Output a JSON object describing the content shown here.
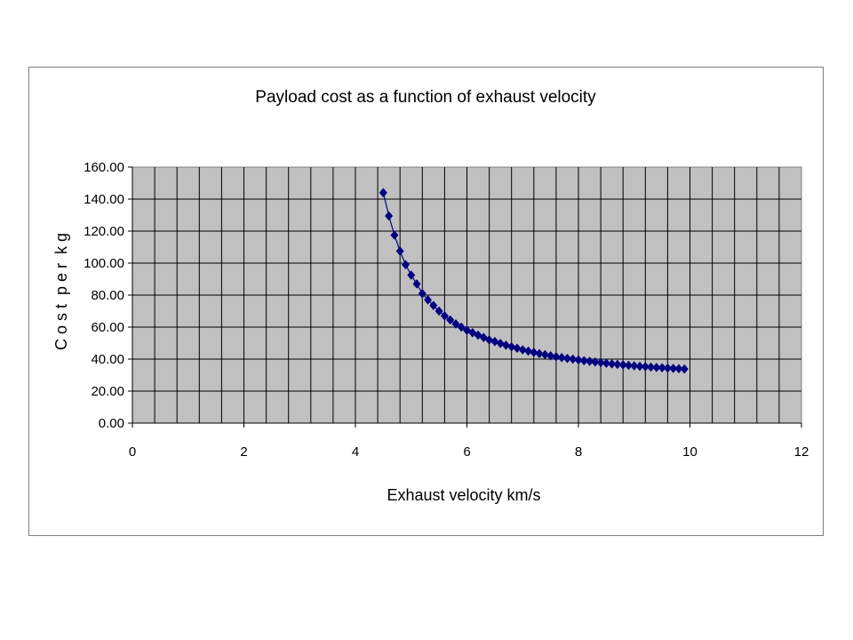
{
  "chart_data": {
    "type": "scatter",
    "title": "Payload cost as a function of exhaust velocity",
    "xlabel": "Exhaust velocity km/s",
    "ylabel": "C o s t  p e r  k g",
    "xlim": [
      0,
      12
    ],
    "ylim": [
      0,
      160
    ],
    "x_ticks": [
      "0",
      "2",
      "4",
      "6",
      "8",
      "10",
      "12"
    ],
    "y_ticks": [
      "0.00",
      "20.00",
      "40.00",
      "60.00",
      "80.00",
      "100.00",
      "120.00",
      "140.00",
      "160.00"
    ],
    "x_minor_step": 0.4,
    "y_step": 20,
    "grid": true,
    "plot_background": "#c0c0c0",
    "series": [
      {
        "color": "#000080",
        "marker": "diamond",
        "connected": true,
        "x": [
          4.5,
          4.6,
          4.7,
          4.8,
          4.9,
          5.0,
          5.1,
          5.2,
          5.3,
          5.4,
          5.5,
          5.6,
          5.7,
          5.8,
          5.9,
          6.0,
          6.1,
          6.2,
          6.3,
          6.4,
          6.5,
          6.6,
          6.7,
          6.8,
          6.9,
          7.0,
          7.1,
          7.2,
          7.3,
          7.4,
          7.5,
          7.6,
          7.7,
          7.8,
          7.9,
          8.0,
          8.1,
          8.2,
          8.3,
          8.4,
          8.5,
          8.6,
          8.7,
          8.8,
          8.9,
          9.0,
          9.1,
          9.2,
          9.3,
          9.4,
          9.5,
          9.6,
          9.7,
          9.8,
          9.9
        ],
        "y": [
          144.0,
          129.5,
          117.5,
          107.5,
          99.0,
          92.5,
          87.0,
          81.0,
          77.0,
          73.5,
          70.0,
          67.0,
          64.5,
          62.0,
          60.0,
          58.0,
          56.5,
          55.0,
          53.5,
          52.0,
          51.0,
          49.8,
          48.7,
          47.7,
          46.8,
          45.8,
          45.0,
          44.2,
          43.4,
          42.8,
          42.1,
          41.5,
          41.0,
          40.4,
          40.0,
          39.5,
          39.0,
          38.6,
          38.2,
          37.8,
          37.4,
          37.0,
          36.7,
          36.4,
          36.1,
          35.8,
          35.5,
          35.3,
          35.0,
          34.8,
          34.6,
          34.4,
          34.2,
          34.0,
          33.8
        ]
      }
    ]
  }
}
